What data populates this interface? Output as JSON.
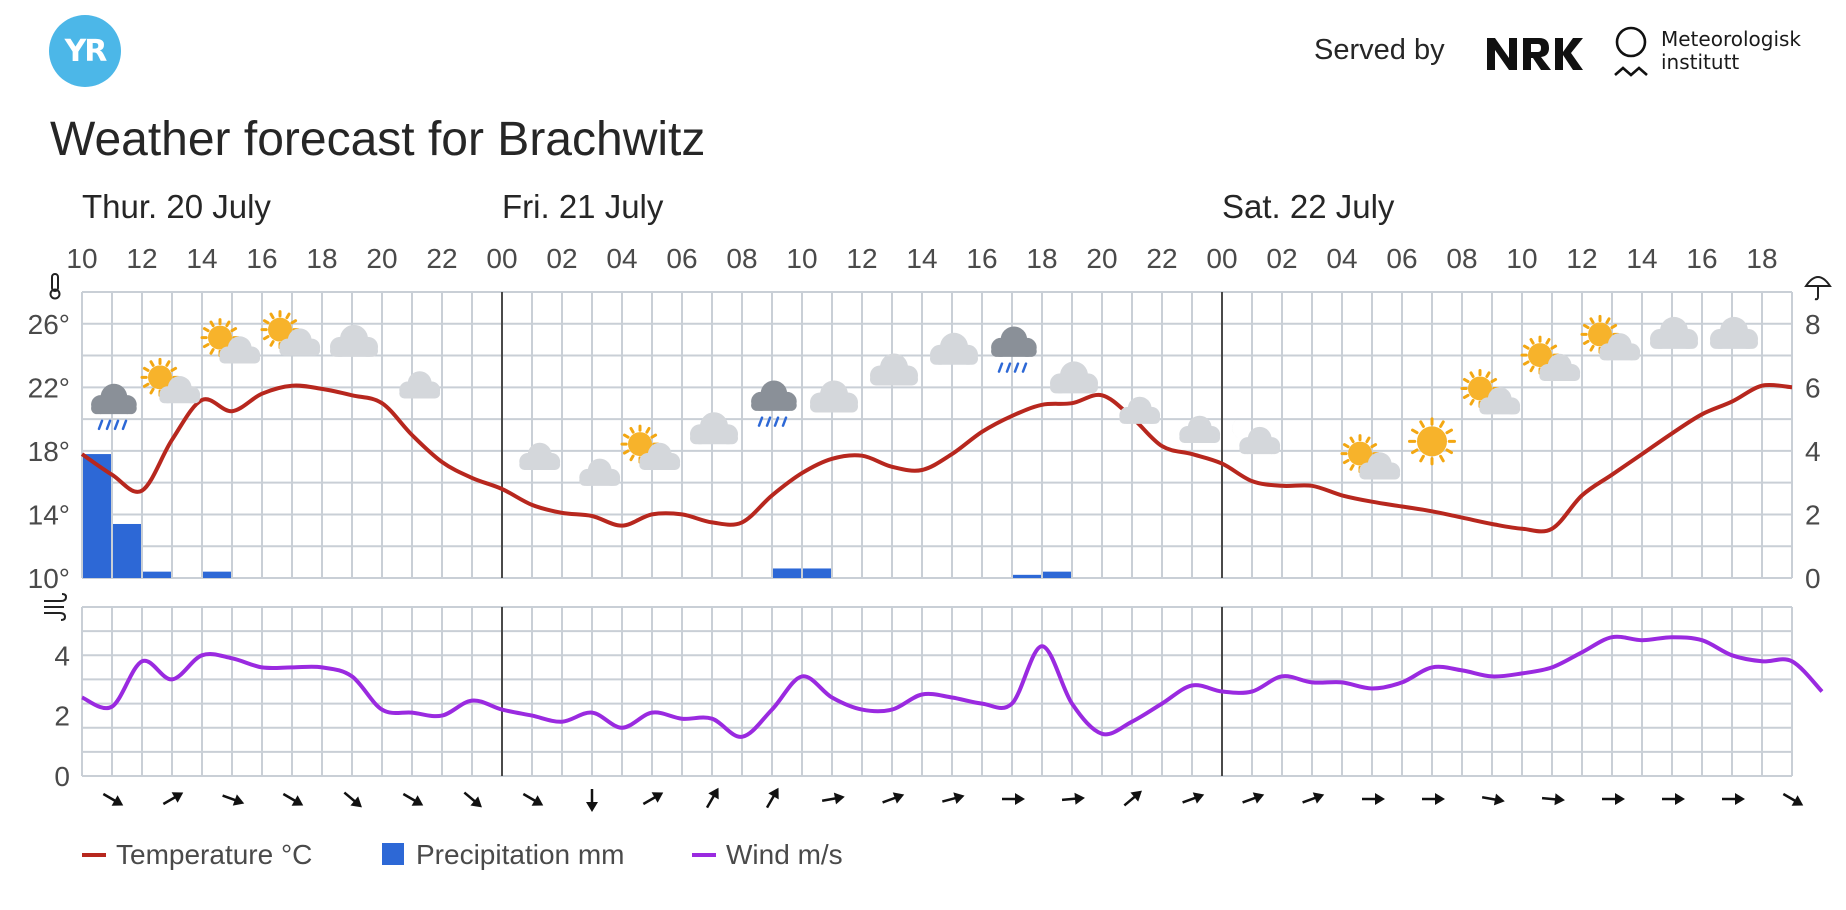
{
  "header": {
    "logo_text": "YR",
    "served_by": "Served by",
    "partners": [
      "NRK",
      "Meteorologisk institutt"
    ],
    "met_line1": "Meteorologisk",
    "met_line2": "institutt"
  },
  "page_title": "Weather forecast for Brachwitz",
  "colors": {
    "temperature": "#B7271E",
    "precipitation": "#2D68D6",
    "wind": "#9A2AE0",
    "grid": "#C9CFD6",
    "yr_blue": "#4CB7E8"
  },
  "icons": {
    "temperature_axis": "thermometer-icon",
    "precipitation_axis": "umbrella-icon",
    "wind_axis": "wind-icon"
  },
  "chart_data": {
    "type": "line",
    "title": "Weather forecast for Brachwitz",
    "days": [
      {
        "label": "Thur. 20 July",
        "start_hour": 10
      },
      {
        "label": "Fri. 21 July",
        "start_hour": 24
      },
      {
        "label": "Sat. 22 July",
        "start_hour": 48
      }
    ],
    "x_tick_labels": [
      "10",
      "12",
      "14",
      "16",
      "18",
      "20",
      "22",
      "00",
      "02",
      "04",
      "06",
      "08",
      "10",
      "12",
      "14",
      "16",
      "18",
      "20",
      "22",
      "00",
      "02",
      "04",
      "06",
      "08",
      "10",
      "12",
      "14",
      "16",
      "18"
    ],
    "temperature": {
      "name": "Temperature °C",
      "unit": "°C",
      "y_ticks": [
        "10°",
        "14°",
        "18°",
        "22°",
        "26°"
      ],
      "ylim": [
        10,
        28
      ],
      "hours": [
        10,
        11,
        12,
        13,
        14,
        15,
        16,
        17,
        18,
        19,
        20,
        21,
        22,
        23,
        24,
        25,
        26,
        27,
        28,
        29,
        30,
        31,
        32,
        33,
        34,
        35,
        36,
        37,
        38,
        39,
        40,
        41,
        42,
        43,
        44,
        45,
        46,
        47,
        48,
        49,
        50,
        51,
        52,
        53,
        54,
        55,
        56,
        57,
        58,
        59,
        60,
        61,
        62,
        63,
        64,
        65,
        66
      ],
      "values": [
        17.8,
        16.5,
        15.5,
        18.7,
        21.2,
        20.5,
        21.6,
        22.1,
        21.9,
        21.5,
        21.0,
        19.0,
        17.3,
        16.3,
        15.6,
        14.6,
        14.1,
        13.9,
        13.3,
        14.0,
        14.0,
        13.5,
        13.5,
        15.2,
        16.6,
        17.5,
        17.7,
        17.0,
        16.8,
        17.8,
        19.2,
        20.2,
        20.9,
        21.0,
        21.5,
        20.1,
        18.3,
        17.8,
        17.2,
        16.1,
        15.8,
        15.8,
        15.2,
        14.8,
        14.5,
        14.2,
        13.8,
        13.4,
        13.1,
        13.1,
        15.2,
        16.5,
        17.8,
        19.1,
        20.3,
        21.1,
        22.1
      ]
    },
    "precipitation": {
      "name": "Precipitation mm",
      "unit": "mm",
      "y_ticks": [
        "0",
        "2",
        "4",
        "6",
        "8"
      ],
      "ylim": [
        0,
        9
      ],
      "hours": [
        10,
        11,
        12,
        14,
        33,
        34,
        41,
        42
      ],
      "values": [
        3.9,
        1.7,
        0.2,
        0.2,
        0.3,
        0.3,
        0.1,
        0.2
      ]
    },
    "wind": {
      "name": "Wind m/s",
      "unit": "m/s",
      "y_ticks": [
        "0",
        "2",
        "4"
      ],
      "ylim": [
        0,
        5.6
      ],
      "hours": [
        10,
        11,
        12,
        13,
        14,
        15,
        16,
        17,
        18,
        19,
        20,
        21,
        22,
        23,
        24,
        25,
        26,
        27,
        28,
        29,
        30,
        31,
        32,
        33,
        34,
        35,
        36,
        37,
        38,
        39,
        40,
        41,
        42,
        43,
        44,
        45,
        46,
        47,
        48,
        49,
        50,
        51,
        52,
        53,
        54,
        55,
        56,
        57,
        58,
        59,
        60,
        61,
        62,
        63,
        64,
        65,
        66,
        67,
        68
      ],
      "values": [
        2.6,
        2.3,
        3.8,
        3.2,
        4.0,
        3.9,
        3.6,
        3.6,
        3.6,
        3.3,
        2.2,
        2.1,
        2.0,
        2.5,
        2.2,
        2.0,
        1.8,
        2.1,
        1.6,
        2.1,
        1.9,
        1.9,
        1.3,
        2.2,
        3.3,
        2.6,
        2.2,
        2.2,
        2.7,
        2.6,
        2.4,
        2.4,
        4.3,
        2.4,
        1.4,
        1.8,
        2.4,
        3.0,
        2.8,
        2.8,
        3.3,
        3.1,
        3.1,
        2.9,
        3.1,
        3.6,
        3.5,
        3.3,
        3.4,
        3.6,
        4.1,
        4.6,
        4.5,
        4.6,
        4.5,
        4.0,
        3.8,
        3.8,
        2.8
      ]
    },
    "wind_direction_hours": [
      11,
      13,
      15,
      17,
      19,
      21,
      23,
      25,
      27,
      29,
      31,
      33,
      35,
      37,
      39,
      41,
      43,
      45,
      47,
      49,
      51,
      53,
      55,
      57,
      59,
      61,
      63,
      65,
      67
    ],
    "wind_direction_deg": [
      300,
      240,
      290,
      300,
      310,
      300,
      310,
      300,
      0,
      240,
      210,
      210,
      260,
      250,
      255,
      270,
      265,
      230,
      250,
      250,
      250,
      270,
      270,
      280,
      275,
      270,
      270,
      270,
      300
    ],
    "weather_symbols": [
      {
        "hour": 11,
        "symbol": "rain-cloud-icon",
        "temp": 20.9
      },
      {
        "hour": 13,
        "symbol": "sun-partly-cloudy-icon",
        "temp": 22.0
      },
      {
        "hour": 15,
        "symbol": "sun-partly-cloudy-icon",
        "temp": 24.5
      },
      {
        "hour": 17,
        "symbol": "sun-partly-cloudy-icon",
        "temp": 25.0
      },
      {
        "hour": 19,
        "symbol": "cloud-icon",
        "temp": 24.8
      },
      {
        "hour": 21,
        "symbol": "moon-partly-cloudy-icon",
        "temp": 22.3
      },
      {
        "hour": 23,
        "symbol": "moon-icon",
        "temp": 19.8
      },
      {
        "hour": 25,
        "symbol": "moon-partly-cloudy-icon",
        "temp": 17.8
      },
      {
        "hour": 27,
        "symbol": "moon-partly-cloudy-icon",
        "temp": 16.8
      },
      {
        "hour": 29,
        "symbol": "sun-partly-cloudy-icon",
        "temp": 17.8
      },
      {
        "hour": 31,
        "symbol": "cloud-icon",
        "temp": 19.3
      },
      {
        "hour": 33,
        "symbol": "rain-cloud-icon",
        "temp": 21.1
      },
      {
        "hour": 35,
        "symbol": "cloud-icon",
        "temp": 21.3
      },
      {
        "hour": 37,
        "symbol": "cloud-icon",
        "temp": 23.0
      },
      {
        "hour": 39,
        "symbol": "cloud-icon",
        "temp": 24.3
      },
      {
        "hour": 41,
        "symbol": "rain-cloud-icon",
        "temp": 24.5
      },
      {
        "hour": 43,
        "symbol": "cloud-icon",
        "temp": 22.5
      },
      {
        "hour": 45,
        "symbol": "moon-partly-cloudy-icon",
        "temp": 20.7
      },
      {
        "hour": 47,
        "symbol": "moon-partly-cloudy-icon",
        "temp": 19.5
      },
      {
        "hour": 49,
        "symbol": "moon-partly-cloudy-icon",
        "temp": 18.8
      },
      {
        "hour": 51,
        "symbol": "moon-icon",
        "temp": 17.8
      },
      {
        "hour": 53,
        "symbol": "sun-partly-cloudy-icon",
        "temp": 17.2
      },
      {
        "hour": 55,
        "symbol": "sun-icon",
        "temp": 18.6
      },
      {
        "hour": 57,
        "symbol": "sun-partly-cloudy-icon",
        "temp": 21.3
      },
      {
        "hour": 59,
        "symbol": "sun-partly-cloudy-icon",
        "temp": 23.4
      },
      {
        "hour": 61,
        "symbol": "sun-partly-cloudy-icon",
        "temp": 24.7
      },
      {
        "hour": 63,
        "symbol": "cloud-icon",
        "temp": 25.3
      },
      {
        "hour": 65,
        "symbol": "cloud-icon",
        "temp": 25.3
      }
    ],
    "legend": [
      "Temperature °C",
      "Precipitation mm",
      "Wind m/s"
    ],
    "legend_position": "bottom-left",
    "grid": true
  }
}
